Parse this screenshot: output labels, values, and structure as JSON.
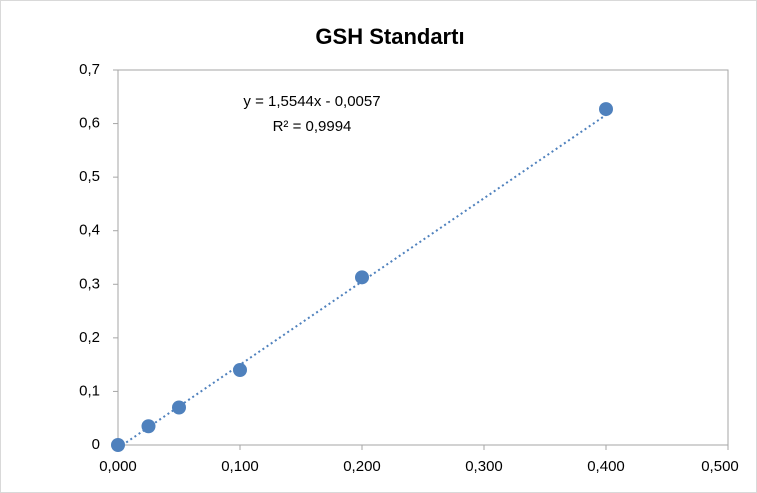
{
  "chart_data": {
    "type": "scatter",
    "title": "GSH Standartı",
    "series": [
      {
        "color": "#4f81bd",
        "x": [
          0,
          0.025,
          0.05,
          0.1,
          0.2,
          0.4
        ],
        "values": [
          0,
          0.035,
          0.07,
          0.14,
          0.313,
          0.627
        ]
      }
    ],
    "trendline": {
      "equation": "y = 1,5544x - 0,0057",
      "r_squared": "R² = 0,9994",
      "slope": 1.5544,
      "intercept": -0.0057,
      "color": "#4f81bd"
    },
    "xlim": [
      0,
      0.5
    ],
    "xticks": [
      {
        "value": 0,
        "label": "0,000"
      },
      {
        "value": 0.1,
        "label": "0,100"
      },
      {
        "value": 0.2,
        "label": "0,200"
      },
      {
        "value": 0.3,
        "label": "0,300"
      },
      {
        "value": 0.4,
        "label": "0,400"
      },
      {
        "value": 0.5,
        "label": "0,500"
      }
    ],
    "ylim": [
      0,
      0.7
    ],
    "yticks": [
      0,
      {
        "value": 0.1,
        "label": "0,1"
      },
      {
        "value": 0.2,
        "label": "0,2"
      },
      {
        "value": 0.3,
        "label": "0,3"
      },
      {
        "value": 0.4,
        "label": "0,4"
      },
      {
        "value": 0.5,
        "label": "0,5"
      },
      {
        "value": 0.6,
        "label": "0,6"
      },
      {
        "value": 0.7,
        "label": "0,7"
      }
    ],
    "grid": false
  }
}
